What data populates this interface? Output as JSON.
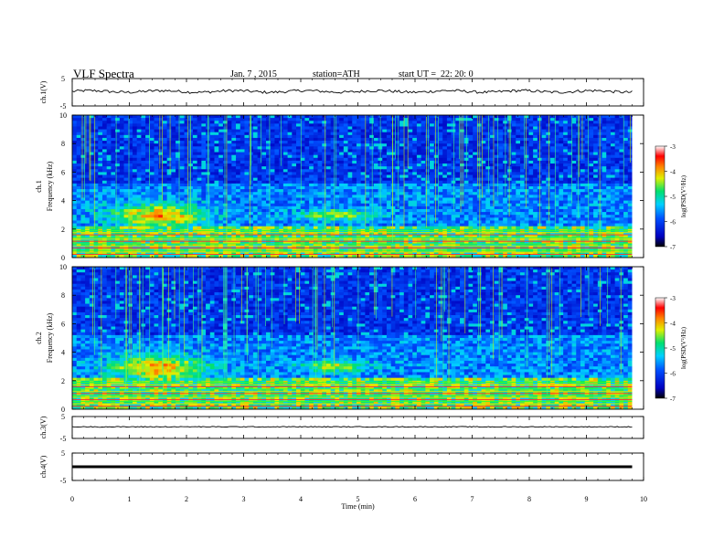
{
  "header": {
    "title": "VLF Spectra",
    "date": "Jan. 7 , 2015",
    "station": "station=ATH",
    "start": "start UT =  22: 20: 0"
  },
  "chart_data": [
    {
      "type": "line",
      "name": "ch1-waveform",
      "ylabel": "ch.1(V)",
      "ytick_labels": [
        "5",
        "-5"
      ],
      "ylim": [
        -5,
        5
      ],
      "xlim": [
        0,
        10
      ],
      "trace": {
        "start": 0,
        "end": 9.8,
        "level": 0.3,
        "noise": 0.5
      }
    },
    {
      "type": "heatmap",
      "name": "ch1-spectrogram",
      "ylabel_lines": [
        "ch.1",
        "Frequency  (kHz)"
      ],
      "ytick_labels": [
        "0",
        "2",
        "4",
        "6",
        "8",
        "10"
      ],
      "ylim": [
        0,
        10
      ],
      "xlim": [
        0,
        10
      ],
      "data_end": 9.8,
      "colorbar": {
        "label": "log(PSD(V²/Hz)",
        "range": [
          -7,
          -3
        ],
        "tick_labels": [
          "-3",
          "-4",
          "-5",
          "-6",
          "-7"
        ]
      }
    },
    {
      "type": "heatmap",
      "name": "ch2-spectrogram",
      "ylabel_lines": [
        "ch.2",
        "Frequency  (kHz)"
      ],
      "ytick_labels": [
        "0",
        "2",
        "4",
        "6",
        "8",
        "10"
      ],
      "ylim": [
        0,
        10
      ],
      "xlim": [
        0,
        10
      ],
      "data_end": 9.8,
      "colorbar": {
        "label": "log(PSD(V²/Hz)",
        "range": [
          -7,
          -3
        ],
        "tick_labels": [
          "-3",
          "-4",
          "-5",
          "-6",
          "-7"
        ]
      }
    },
    {
      "type": "line",
      "name": "ch3-waveform",
      "ylabel": "ch.3(V)",
      "ytick_labels": [
        "5",
        "-5"
      ],
      "ylim": [
        -5,
        5
      ],
      "xlim": [
        0,
        10
      ],
      "trace": {
        "start": 0,
        "end": 9.8,
        "level": 0.3,
        "noise": 0.2
      }
    },
    {
      "type": "line",
      "name": "ch4-waveform",
      "ylabel": "ch.4(V)",
      "ytick_labels": [
        "5",
        "-5"
      ],
      "ylim": [
        -5,
        5
      ],
      "xlim": [
        0,
        10
      ],
      "trace": {
        "start": 0,
        "end": 9.8,
        "level": 0.0,
        "noise": 0.0
      }
    }
  ],
  "xaxis": {
    "label": "Time  (min)",
    "tick_labels": [
      "0",
      "1",
      "2",
      "3",
      "4",
      "5",
      "6",
      "7",
      "8",
      "9",
      "10"
    ],
    "range": [
      0,
      10
    ]
  }
}
